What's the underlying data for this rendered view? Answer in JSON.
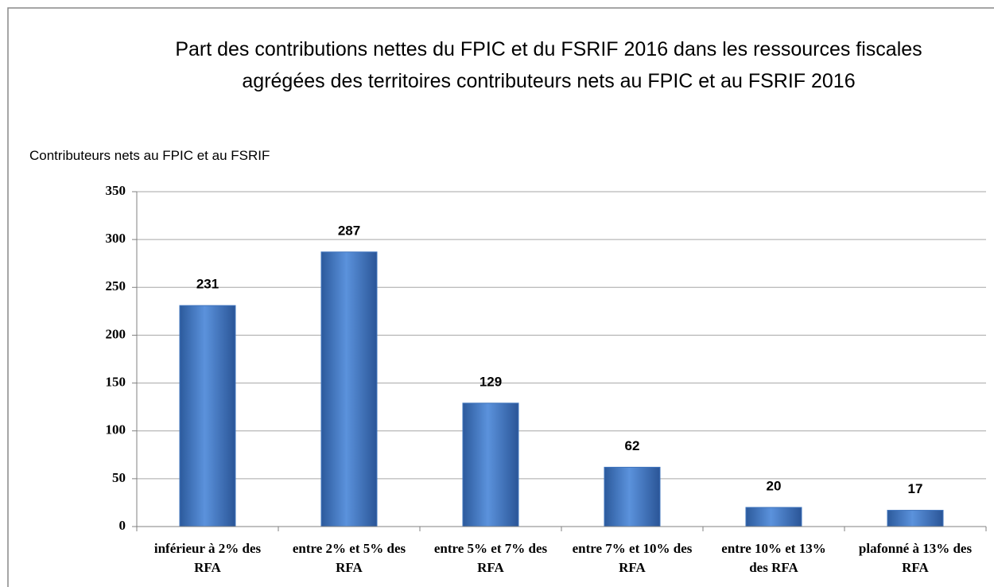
{
  "chart_data": {
    "type": "bar",
    "title": "Part des contributions nettes du FPIC et du FSRIF 2016 dans les ressources fiscales\nagrégées des territoires contributeurs nets au FPIC et au FSRIF 2016",
    "y_label": "Contributeurs nets au FPIC et au FSRIF",
    "categories": [
      "inférieur à 2% des\nRFA",
      "entre 2% et 5% des\nRFA",
      "entre 5% et 7% des\nRFA",
      "entre 7% et 10% des\nRFA",
      "entre 10% et 13%\ndes RFA",
      "plafonné à 13% des\nRFA"
    ],
    "values": [
      231,
      287,
      129,
      62,
      20,
      17
    ],
    "color": "#3f74bd",
    "ylim": [
      0,
      350
    ],
    "yticks": [
      0,
      50,
      100,
      150,
      200,
      250,
      300,
      350
    ],
    "grid": true
  }
}
